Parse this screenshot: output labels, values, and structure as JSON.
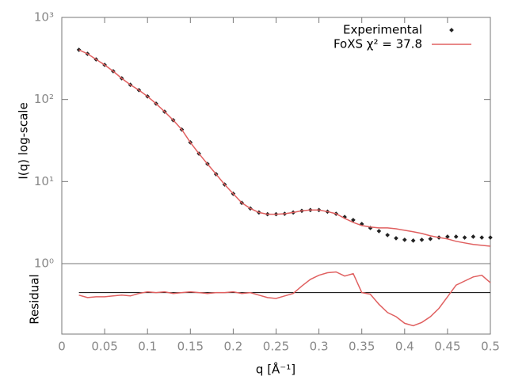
{
  "chart_data": [
    {
      "type": "line",
      "ylabel": "I(q) log-scale",
      "ylog": true,
      "legend": "top-right",
      "xlim": [
        0,
        0.5
      ],
      "ylim": [
        1,
        1000
      ],
      "yticks": [
        {
          "value": 1,
          "label": "10⁰"
        },
        {
          "value": 10,
          "label": "10¹"
        },
        {
          "value": 100,
          "label": "10²"
        },
        {
          "value": 1000,
          "label": "10³"
        }
      ],
      "x": [
        0.02,
        0.03,
        0.04,
        0.05,
        0.06,
        0.07,
        0.08,
        0.09,
        0.1,
        0.11,
        0.12,
        0.13,
        0.14,
        0.15,
        0.16,
        0.17,
        0.18,
        0.19,
        0.2,
        0.21,
        0.22,
        0.23,
        0.24,
        0.25,
        0.26,
        0.27,
        0.28,
        0.29,
        0.3,
        0.31,
        0.32,
        0.33,
        0.34,
        0.35,
        0.36,
        0.37,
        0.38,
        0.39,
        0.4,
        0.41,
        0.42,
        0.43,
        0.44,
        0.45,
        0.46,
        0.47,
        0.48,
        0.49,
        0.5
      ],
      "series": [
        {
          "name": "Experimental",
          "color": "#222222",
          "style": "points",
          "values": [
            403,
            360,
            308,
            264,
            221,
            181,
            151,
            130,
            109,
            89,
            71,
            56,
            43,
            30,
            21.9,
            16.4,
            12.3,
            9.2,
            7.1,
            5.5,
            4.7,
            4.2,
            4.0,
            4.0,
            4.05,
            4.2,
            4.4,
            4.5,
            4.5,
            4.3,
            4.05,
            3.7,
            3.4,
            3.04,
            2.72,
            2.49,
            2.23,
            2.04,
            1.95,
            1.91,
            1.95,
            2.0,
            2.08,
            2.13,
            2.13,
            2.08,
            2.13,
            2.08,
            2.08
          ]
        },
        {
          "name": "FoXS χ² = 37.8",
          "color": "#e06060",
          "style": "line",
          "values": [
            403,
            360,
            308,
            264,
            221,
            181,
            151,
            130,
            109,
            89,
            71,
            56,
            43,
            30,
            21.9,
            16.4,
            12.3,
            9.2,
            7.1,
            5.5,
            4.7,
            4.2,
            4.0,
            4.0,
            4.05,
            4.2,
            4.4,
            4.5,
            4.5,
            4.3,
            4.05,
            3.56,
            3.18,
            2.91,
            2.79,
            2.72,
            2.72,
            2.66,
            2.55,
            2.44,
            2.33,
            2.18,
            2.08,
            2.0,
            1.87,
            1.79,
            1.71,
            1.67,
            1.63
          ]
        }
      ]
    },
    {
      "type": "line",
      "ylabel": "Residual",
      "xlabel": "q [Å⁻¹]",
      "xlim": [
        0,
        0.5
      ],
      "xticks": [
        0,
        0.05,
        0.1,
        0.15,
        0.2,
        0.25,
        0.3,
        0.35,
        0.4,
        0.45,
        0.5
      ],
      "ylim": [
        -5,
        3.5
      ],
      "hline": 0,
      "x": [
        0.02,
        0.03,
        0.04,
        0.05,
        0.06,
        0.07,
        0.08,
        0.09,
        0.1,
        0.11,
        0.12,
        0.13,
        0.14,
        0.15,
        0.16,
        0.17,
        0.18,
        0.19,
        0.2,
        0.21,
        0.22,
        0.23,
        0.24,
        0.25,
        0.26,
        0.27,
        0.28,
        0.29,
        0.3,
        0.31,
        0.32,
        0.33,
        0.34,
        0.35,
        0.36,
        0.37,
        0.38,
        0.39,
        0.4,
        0.41,
        0.42,
        0.43,
        0.44,
        0.45,
        0.46,
        0.47,
        0.48,
        0.49,
        0.5
      ],
      "color": "#e06060",
      "values": [
        -0.3,
        -0.6,
        -0.5,
        -0.5,
        -0.4,
        -0.3,
        -0.4,
        -0.1,
        0.1,
        0.0,
        0.1,
        -0.1,
        0.0,
        0.1,
        0.0,
        -0.1,
        0.0,
        0.0,
        0.1,
        -0.1,
        0.0,
        -0.3,
        -0.6,
        -0.7,
        -0.4,
        -0.1,
        0.8,
        1.6,
        2.1,
        2.4,
        2.5,
        2.0,
        2.3,
        0.0,
        -0.2,
        -1.4,
        -2.4,
        -2.9,
        -3.7,
        -4.0,
        -3.6,
        -2.9,
        -1.9,
        -0.5,
        0.9,
        1.4,
        1.9,
        2.1,
        1.2
      ]
    }
  ]
}
